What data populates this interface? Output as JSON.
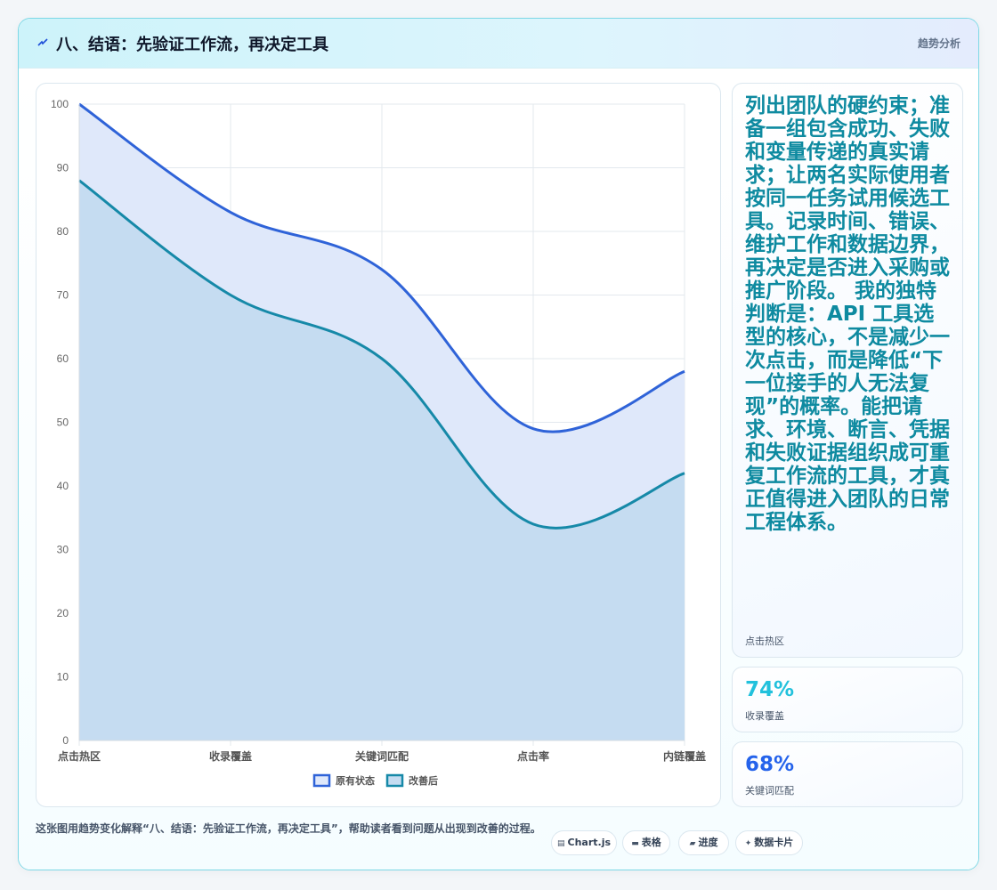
{
  "header": {
    "title": "八、结语：先验证工作流，再决定工具",
    "tag": "趋势分析"
  },
  "side": {
    "big_text": "列出团队的硬约束；准备一组包含成功、失败和变量传递的真实请求；让两名实际使用者按同一任务试用候选工具。记录时间、错误、维护工作和数据边界，再决定是否进入采购或推广阶段。 我的独特判断是：API 工具选型的核心，不是减少一次点击，而是降低“下一位接手的人无法复现”的概率。能把请求、环境、断言、凭据和失败证据组织成可重复工作流的工具，才真正值得进入团队的日常工程体系。",
    "big_caption": "点击热区",
    "stats": [
      {
        "value": "74%",
        "label": "收录覆盖",
        "color": "#22c1dc"
      },
      {
        "value": "68%",
        "label": "关键词匹配",
        "color": "#2563eb"
      }
    ]
  },
  "footer": {
    "text": "这张图用趋势变化解释“八、结语：先验证工作流，再决定工具”，帮助读者看到问题从出现到改善的过程。",
    "pills": [
      {
        "icon": "chart-icon",
        "glyph": "▤",
        "label": "Chart.js"
      },
      {
        "icon": "table-icon",
        "glyph": "▬",
        "label": "表格"
      },
      {
        "icon": "progress-icon",
        "glyph": "▰",
        "label": "进度"
      },
      {
        "icon": "card-icon",
        "glyph": "✦",
        "label": "数据卡片"
      }
    ]
  },
  "chart_data": {
    "type": "area",
    "categories": [
      "点击热区",
      "收录覆盖",
      "关键词匹配",
      "点击率",
      "内链覆盖"
    ],
    "series": [
      {
        "name": "原有状态",
        "values": [
          100,
          83,
          74,
          49,
          58
        ],
        "color": "#2f63d8",
        "fill": "#dfe8fa"
      },
      {
        "name": "改善后",
        "values": [
          88,
          70,
          60,
          34,
          42
        ],
        "color": "#1689a8",
        "fill": "#c5dcf1"
      }
    ],
    "ylim": [
      0,
      100
    ],
    "yticks": [
      0,
      10,
      20,
      30,
      40,
      50,
      60,
      70,
      80,
      90,
      100
    ],
    "grid": true,
    "legend": "bottom"
  }
}
